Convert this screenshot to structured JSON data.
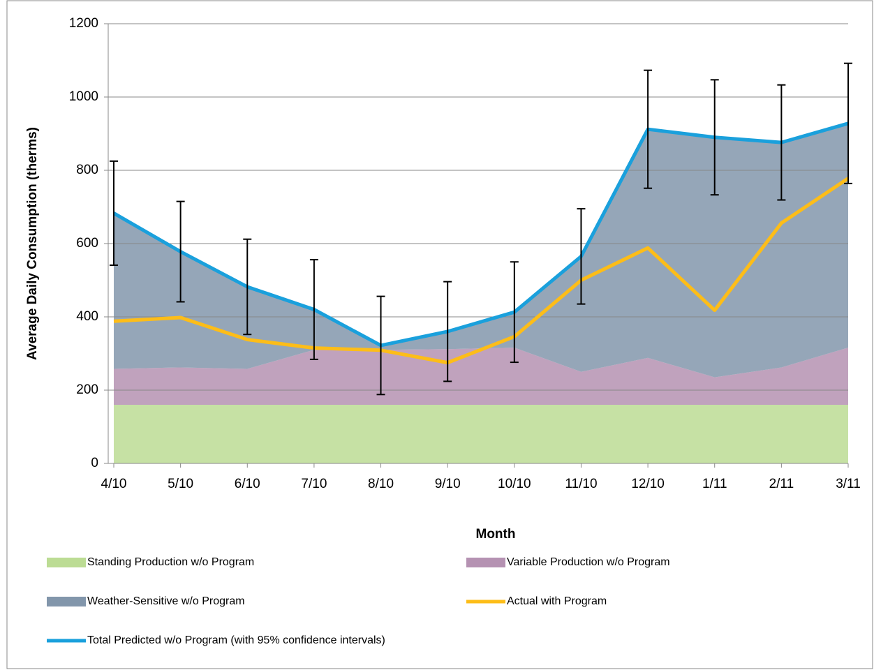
{
  "chart_data": {
    "type": "stacked-area-line",
    "x_label": "Month",
    "y_label": "Average Daily Consumption (therms)",
    "categories": [
      "4/10",
      "5/10",
      "6/10",
      "7/10",
      "8/10",
      "9/10",
      "10/10",
      "11/10",
      "12/10",
      "1/11",
      "2/11",
      "3/11"
    ],
    "ylim": [
      0,
      1200
    ],
    "yticks": [
      0,
      200,
      400,
      600,
      800,
      1000,
      1200
    ],
    "grid": true,
    "series": [
      {
        "name": "Standing Production w/o Program",
        "kind": "area",
        "color": "#bcdc94",
        "values": [
          160,
          160,
          160,
          160,
          160,
          160,
          160,
          160,
          160,
          160,
          160,
          160
        ]
      },
      {
        "name": "Variable Production w/o Program",
        "kind": "area",
        "color": "#b592b2",
        "values": [
          98,
          102,
          98,
          150,
          150,
          152,
          156,
          90,
          128,
          75,
          102,
          156
        ]
      },
      {
        "name": "Weather-Sensitive w/o Program",
        "kind": "area",
        "color": "#8296ab",
        "values": [
          425,
          316,
          224,
          110,
          12,
          48,
          97,
          315,
          624,
          655,
          614,
          612
        ]
      },
      {
        "name": "Actual with Program",
        "kind": "line",
        "color": "#fdbd18",
        "values": [
          388,
          398,
          338,
          315,
          309,
          275,
          346,
          500,
          588,
          418,
          656,
          778
        ]
      },
      {
        "name": "Total Predicted w/o Program (with 95% confidence intervals)",
        "kind": "line",
        "color": "#1aa0dc",
        "values": [
          683,
          578,
          482,
          420,
          322,
          360,
          413,
          565,
          912,
          890,
          876,
          928
        ],
        "errors": [
          142,
          137,
          130,
          136,
          134,
          136,
          137,
          130,
          161,
          157,
          157,
          164
        ]
      }
    ]
  }
}
